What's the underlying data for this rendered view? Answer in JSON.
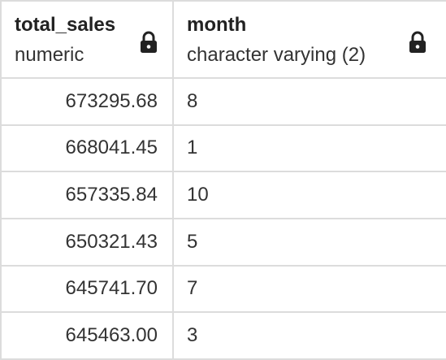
{
  "columns": [
    {
      "name": "total_sales",
      "type": "numeric",
      "icon": "lock-icon"
    },
    {
      "name": "month",
      "type": "character varying (2)",
      "icon": "lock-icon"
    }
  ],
  "rows": [
    {
      "total_sales": "673295.68",
      "month": "8"
    },
    {
      "total_sales": "668041.45",
      "month": "1"
    },
    {
      "total_sales": "657335.84",
      "month": "10"
    },
    {
      "total_sales": "650321.43",
      "month": "5"
    },
    {
      "total_sales": "645741.70",
      "month": "7"
    },
    {
      "total_sales": "645463.00",
      "month": "3"
    }
  ],
  "colors": {
    "border": "#dcdcdc",
    "text": "#333333",
    "lock": "#222222"
  }
}
